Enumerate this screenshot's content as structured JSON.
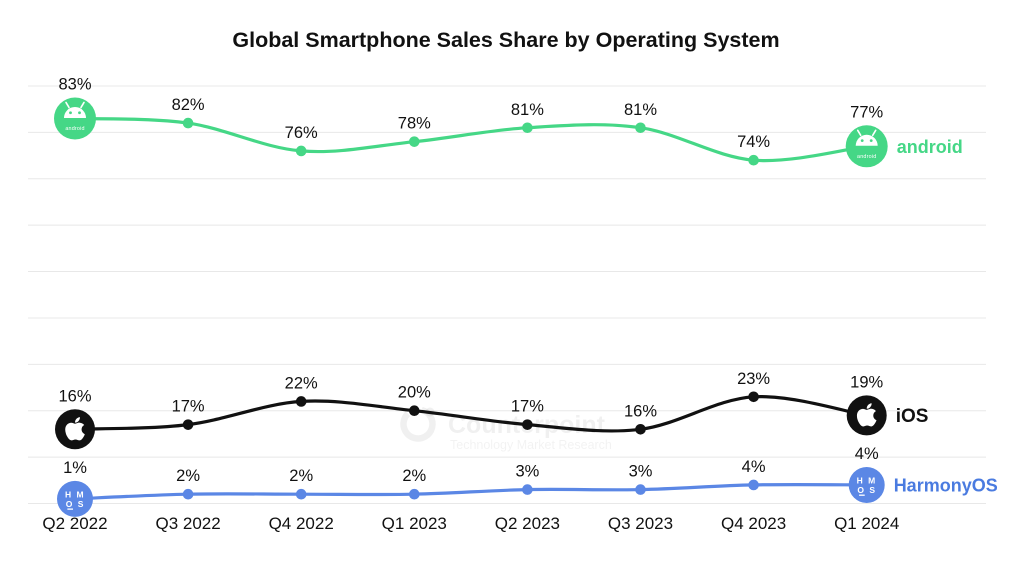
{
  "title": "Global Smartphone Sales Share by Operating System",
  "watermark": {
    "brand": "Counterpoint",
    "tagline": "Technology Market Research"
  },
  "colors": {
    "background": "#ffffff",
    "grid": "#e8e8e8",
    "value_label": "#111111",
    "axis_label": "#111111",
    "title": "#111111",
    "android": "#45d786",
    "ios": "#111111",
    "harmonyos": "#5b87e5",
    "harmonyos_label": "#4a7be0"
  },
  "chart_data": {
    "type": "line",
    "title": "Global Smartphone Sales Share by Operating System",
    "categories": [
      "Q2 2022",
      "Q3 2022",
      "Q4 2022",
      "Q1 2023",
      "Q2 2023",
      "Q3 2023",
      "Q4 2023",
      "Q1 2024"
    ],
    "series": [
      {
        "name": "android",
        "label": "android",
        "icon": "android-logo",
        "color": "#45d786",
        "label_color": "#45d786",
        "values": [
          83,
          82,
          76,
          78,
          81,
          81,
          74,
          77
        ]
      },
      {
        "name": "iOS",
        "label": "iOS",
        "icon": "apple-logo",
        "color": "#111111",
        "label_color": "#111111",
        "values": [
          16,
          17,
          22,
          20,
          17,
          16,
          23,
          19
        ]
      },
      {
        "name": "HarmonyOS",
        "label": "HarmonyOS",
        "icon": "hmos-logo",
        "color": "#5b87e5",
        "label_color": "#4a7be0",
        "values": [
          1,
          2,
          2,
          2,
          3,
          3,
          4,
          4
        ]
      }
    ],
    "value_suffix": "%",
    "ylim": [
      0,
      90
    ],
    "grid_step": 10,
    "grid": "horizontal-only",
    "legend_position": "line-end",
    "xlabel": "",
    "ylabel": ""
  }
}
